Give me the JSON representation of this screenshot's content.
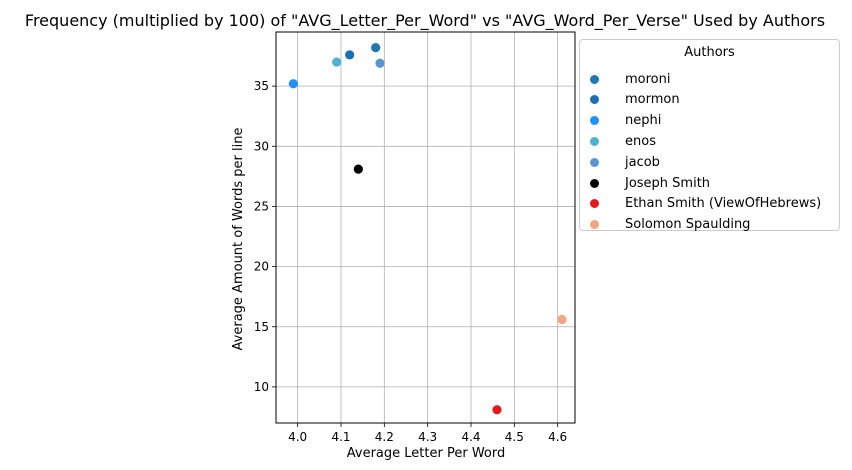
{
  "chart_data": {
    "type": "scatter",
    "title": "Frequency (multiplied by 100) of \"AVG_Letter_Per_Word\" vs \"AVG_Word_Per_Verse\" Used by Authors",
    "xlabel": "Average Letter Per Word",
    "ylabel": "Average Amount of Words per line",
    "xlim": [
      3.95,
      4.64
    ],
    "ylim": [
      7.0,
      39.5
    ],
    "xticks": [
      "4.0",
      "4.1",
      "4.2",
      "4.3",
      "4.4",
      "4.5",
      "4.6"
    ],
    "yticks": [
      "10",
      "15",
      "20",
      "25",
      "30",
      "35"
    ],
    "grid": true,
    "legend": {
      "title": "Authors",
      "placement": "outside-right"
    },
    "series": [
      {
        "name": "moroni",
        "color": "#1f77b4",
        "points": [
          {
            "x": 4.18,
            "y": 38.2
          }
        ]
      },
      {
        "name": "mormon",
        "color": "#1a6fb5",
        "points": [
          {
            "x": 4.12,
            "y": 37.6
          }
        ]
      },
      {
        "name": "nephi",
        "color": "#1e90ff",
        "points": [
          {
            "x": 3.99,
            "y": 35.2
          }
        ]
      },
      {
        "name": "enos",
        "color": "#4eb3d3",
        "points": [
          {
            "x": 4.09,
            "y": 37.0
          }
        ]
      },
      {
        "name": "jacob",
        "color": "#5a96cf",
        "points": [
          {
            "x": 4.19,
            "y": 36.9
          }
        ]
      },
      {
        "name": "Joseph Smith",
        "color": "#000000",
        "points": [
          {
            "x": 4.14,
            "y": 28.1
          }
        ]
      },
      {
        "name": "Ethan Smith (ViewOfHebrews)",
        "color": "#e31a1c",
        "points": [
          {
            "x": 4.46,
            "y": 8.1
          }
        ]
      },
      {
        "name": "Solomon Spaulding",
        "color": "#f4a582",
        "points": [
          {
            "x": 4.61,
            "y": 15.6
          }
        ]
      }
    ]
  }
}
